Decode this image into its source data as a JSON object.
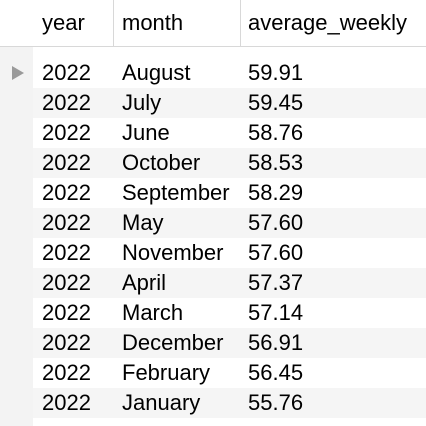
{
  "columns": [
    "year",
    "month",
    "average_weekly"
  ],
  "rows": [
    {
      "year": "2022",
      "month": "August",
      "average_weekly": "59.91"
    },
    {
      "year": "2022",
      "month": "July",
      "average_weekly": "59.45"
    },
    {
      "year": "2022",
      "month": "June",
      "average_weekly": "58.76"
    },
    {
      "year": "2022",
      "month": "October",
      "average_weekly": "58.53"
    },
    {
      "year": "2022",
      "month": "September",
      "average_weekly": "58.29"
    },
    {
      "year": "2022",
      "month": "May",
      "average_weekly": "57.60"
    },
    {
      "year": "2022",
      "month": "November",
      "average_weekly": "57.60"
    },
    {
      "year": "2022",
      "month": "April",
      "average_weekly": "57.37"
    },
    {
      "year": "2022",
      "month": "March",
      "average_weekly": "57.14"
    },
    {
      "year": "2022",
      "month": "December",
      "average_weekly": "56.91"
    },
    {
      "year": "2022",
      "month": "February",
      "average_weekly": "56.45"
    },
    {
      "year": "2022",
      "month": "January",
      "average_weekly": "55.76"
    }
  ],
  "current_row_marker_icon": "triangle-right-icon",
  "colors": {
    "gutter": "#f3f3f3",
    "alt_row": "#f5f5f5",
    "marker": "#9a9a9a",
    "grid_line": "#d8d8d8"
  }
}
